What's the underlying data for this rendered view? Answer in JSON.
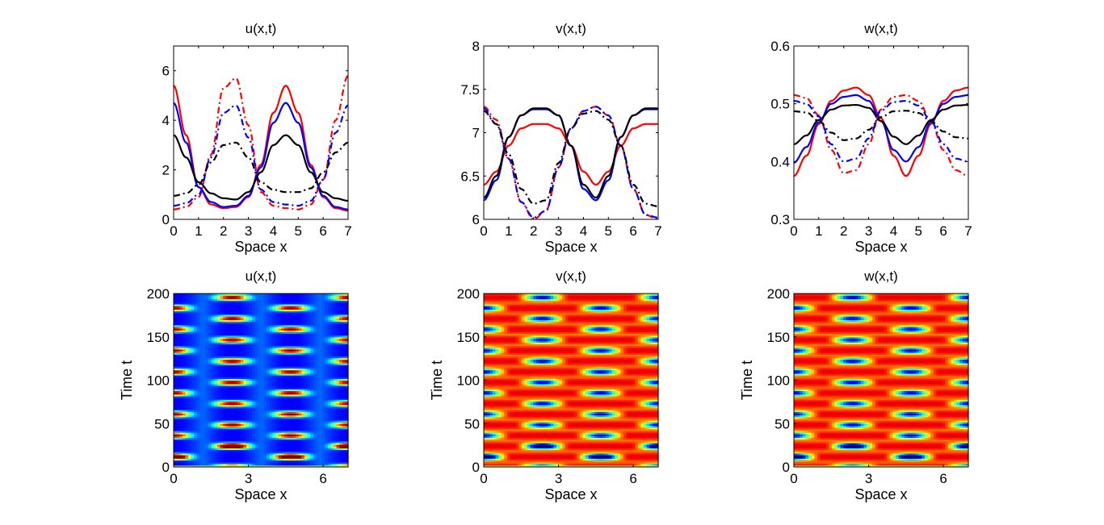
{
  "chart_data": [
    {
      "type": "line",
      "title": "u(x,t)",
      "xlabel": "Space x",
      "ylabel": "",
      "xlim": [
        0,
        7
      ],
      "ylim": [
        0,
        7
      ],
      "xticks": [
        "0",
        "1",
        "2",
        "3",
        "4",
        "5",
        "6",
        "7"
      ],
      "yticks": [
        "0",
        "2",
        "4",
        "6"
      ],
      "grid": false,
      "series": [
        {
          "color": "#ff0000",
          "dash": "solid",
          "x": [
            0,
            0.5,
            1,
            1.5,
            2,
            2.5,
            3,
            3.5,
            4,
            4.5,
            5,
            5.5,
            6,
            6.5,
            7
          ],
          "y": [
            5.4,
            3.4,
            1.3,
            0.6,
            0.45,
            0.5,
            0.9,
            2.2,
            4.3,
            5.4,
            4.3,
            2.2,
            0.9,
            0.45,
            0.35
          ]
        },
        {
          "color": "#0000ff",
          "dash": "solid",
          "x": [
            0,
            0.5,
            1,
            1.5,
            2,
            2.5,
            3,
            3.5,
            4,
            4.5,
            5,
            5.5,
            6,
            6.5,
            7
          ],
          "y": [
            4.7,
            3.1,
            1.3,
            0.7,
            0.5,
            0.55,
            0.95,
            2.1,
            3.9,
            4.7,
            3.9,
            2.1,
            0.95,
            0.5,
            0.4
          ]
        },
        {
          "color": "#000000",
          "dash": "solid",
          "x": [
            0,
            0.5,
            1,
            1.5,
            2,
            2.5,
            3,
            3.5,
            4,
            4.5,
            5,
            5.5,
            6,
            6.5,
            7
          ],
          "y": [
            3.4,
            2.5,
            1.5,
            1.05,
            0.85,
            0.8,
            1.1,
            1.9,
            3.0,
            3.4,
            3.0,
            1.9,
            1.1,
            0.85,
            0.75
          ]
        },
        {
          "color": "#ff0000",
          "dash": "dashdot",
          "x": [
            0,
            0.5,
            1,
            1.5,
            2,
            2.5,
            3,
            3.5,
            4,
            4.5,
            5,
            5.5,
            6,
            6.5,
            7
          ],
          "y": [
            0.4,
            0.5,
            0.9,
            2.6,
            5.3,
            5.7,
            3.8,
            1.1,
            0.55,
            0.45,
            0.4,
            0.6,
            1.6,
            4.0,
            5.8
          ]
        },
        {
          "color": "#0000ff",
          "dash": "dashdot",
          "x": [
            0,
            0.5,
            1,
            1.5,
            2,
            2.5,
            3,
            3.5,
            4,
            4.5,
            5,
            5.5,
            6,
            6.5,
            7
          ],
          "y": [
            0.55,
            0.65,
            1.0,
            2.5,
            4.3,
            4.6,
            3.3,
            1.2,
            0.7,
            0.6,
            0.55,
            0.75,
            1.6,
            3.5,
            4.6
          ]
        },
        {
          "color": "#000000",
          "dash": "dashdot",
          "x": [
            0,
            0.5,
            1,
            1.5,
            2,
            2.5,
            3,
            3.5,
            4,
            4.5,
            5,
            5.5,
            6,
            6.5,
            7
          ],
          "y": [
            0.95,
            1.05,
            1.4,
            2.3,
            3.0,
            3.1,
            2.5,
            1.5,
            1.2,
            1.1,
            1.1,
            1.25,
            1.9,
            2.7,
            3.1
          ]
        }
      ]
    },
    {
      "type": "line",
      "title": "v(x,t)",
      "xlabel": "Space x",
      "ylabel": "",
      "xlim": [
        0,
        7
      ],
      "ylim": [
        6,
        8
      ],
      "xticks": [
        "0",
        "1",
        "2",
        "3",
        "4",
        "5",
        "6",
        "7"
      ],
      "yticks": [
        "6",
        "6.5",
        "7",
        "7.5",
        "8"
      ],
      "grid": false,
      "series": [
        {
          "color": "#ff0000",
          "dash": "solid",
          "x": [
            0,
            0.5,
            1,
            1.5,
            2,
            2.5,
            3,
            3.5,
            4,
            4.5,
            5,
            5.5,
            6,
            6.5,
            7
          ],
          "y": [
            6.4,
            6.55,
            6.85,
            7.05,
            7.1,
            7.1,
            7.05,
            6.85,
            6.55,
            6.4,
            6.55,
            6.85,
            7.05,
            7.1,
            7.1
          ]
        },
        {
          "color": "#0000ff",
          "dash": "solid",
          "x": [
            0,
            0.5,
            1,
            1.5,
            2,
            2.5,
            3,
            3.5,
            4,
            4.5,
            5,
            5.5,
            6,
            6.5,
            7
          ],
          "y": [
            6.22,
            6.45,
            6.95,
            7.2,
            7.27,
            7.27,
            7.2,
            6.85,
            6.35,
            6.22,
            6.45,
            6.95,
            7.2,
            7.27,
            7.27
          ]
        },
        {
          "color": "#000000",
          "dash": "solid",
          "x": [
            0,
            0.5,
            1,
            1.5,
            2,
            2.5,
            3,
            3.5,
            4,
            4.5,
            5,
            5.5,
            6,
            6.5,
            7
          ],
          "y": [
            6.25,
            6.5,
            6.95,
            7.2,
            7.28,
            7.28,
            7.2,
            6.85,
            6.4,
            6.25,
            6.5,
            6.95,
            7.2,
            7.28,
            7.28
          ]
        },
        {
          "color": "#ff0000",
          "dash": "dashdot",
          "x": [
            0,
            0.5,
            1,
            1.5,
            2,
            2.5,
            3,
            3.5,
            4,
            4.5,
            5,
            5.5,
            6,
            6.5,
            7
          ],
          "y": [
            7.3,
            7.15,
            6.7,
            6.2,
            6.0,
            6.1,
            6.6,
            7.05,
            7.25,
            7.3,
            7.2,
            6.85,
            6.35,
            6.05,
            6.0
          ]
        },
        {
          "color": "#0000ff",
          "dash": "dashdot",
          "x": [
            0,
            0.5,
            1,
            1.5,
            2,
            2.5,
            3,
            3.5,
            4,
            4.5,
            5,
            5.5,
            6,
            6.5,
            7
          ],
          "y": [
            7.28,
            7.1,
            6.7,
            6.2,
            6.02,
            6.1,
            6.6,
            7.05,
            7.25,
            7.3,
            7.2,
            6.85,
            6.35,
            6.05,
            6.02
          ]
        },
        {
          "color": "#000000",
          "dash": "dashdot",
          "x": [
            0,
            0.5,
            1,
            1.5,
            2,
            2.5,
            3,
            3.5,
            4,
            4.5,
            5,
            5.5,
            6,
            6.5,
            7
          ],
          "y": [
            7.25,
            7.1,
            6.75,
            6.35,
            6.18,
            6.22,
            6.65,
            7.05,
            7.22,
            7.25,
            7.15,
            6.85,
            6.4,
            6.18,
            6.15
          ]
        }
      ]
    },
    {
      "type": "line",
      "title": "w(x,t)",
      "xlabel": "Space x",
      "ylabel": "",
      "xlim": [
        0,
        7
      ],
      "ylim": [
        0.3,
        0.6
      ],
      "xticks": [
        "0",
        "1",
        "2",
        "3",
        "4",
        "5",
        "6",
        "7"
      ],
      "yticks": [
        "0.3",
        "0.4",
        "0.5",
        "0.6"
      ],
      "grid": false,
      "series": [
        {
          "color": "#ff0000",
          "dash": "solid",
          "x": [
            0,
            0.5,
            1,
            1.5,
            2,
            2.5,
            3,
            3.5,
            4,
            4.5,
            5,
            5.5,
            6,
            6.5,
            7
          ],
          "y": [
            0.375,
            0.41,
            0.465,
            0.505,
            0.523,
            0.528,
            0.515,
            0.475,
            0.41,
            0.375,
            0.41,
            0.465,
            0.505,
            0.523,
            0.528
          ]
        },
        {
          "color": "#0000ff",
          "dash": "solid",
          "x": [
            0,
            0.5,
            1,
            1.5,
            2,
            2.5,
            3,
            3.5,
            4,
            4.5,
            5,
            5.5,
            6,
            6.5,
            7
          ],
          "y": [
            0.398,
            0.425,
            0.468,
            0.5,
            0.512,
            0.515,
            0.505,
            0.47,
            0.42,
            0.4,
            0.425,
            0.468,
            0.5,
            0.512,
            0.515
          ]
        },
        {
          "color": "#000000",
          "dash": "solid",
          "x": [
            0,
            0.5,
            1,
            1.5,
            2,
            2.5,
            3,
            3.5,
            4,
            4.5,
            5,
            5.5,
            6,
            6.5,
            7
          ],
          "y": [
            0.43,
            0.445,
            0.472,
            0.49,
            0.497,
            0.498,
            0.493,
            0.47,
            0.443,
            0.43,
            0.445,
            0.472,
            0.49,
            0.497,
            0.498
          ]
        },
        {
          "color": "#ff0000",
          "dash": "dashdot",
          "x": [
            0,
            0.5,
            1,
            1.5,
            2,
            2.5,
            3,
            3.5,
            4,
            4.5,
            5,
            5.5,
            6,
            6.5,
            7
          ],
          "y": [
            0.515,
            0.51,
            0.48,
            0.42,
            0.38,
            0.385,
            0.43,
            0.49,
            0.512,
            0.515,
            0.505,
            0.47,
            0.42,
            0.385,
            0.375
          ]
        },
        {
          "color": "#0000ff",
          "dash": "dashdot",
          "x": [
            0,
            0.5,
            1,
            1.5,
            2,
            2.5,
            3,
            3.5,
            4,
            4.5,
            5,
            5.5,
            6,
            6.5,
            7
          ],
          "y": [
            0.505,
            0.5,
            0.478,
            0.43,
            0.4,
            0.405,
            0.44,
            0.488,
            0.503,
            0.505,
            0.497,
            0.47,
            0.43,
            0.405,
            0.4
          ]
        },
        {
          "color": "#000000",
          "dash": "dashdot",
          "x": [
            0,
            0.5,
            1,
            1.5,
            2,
            2.5,
            3,
            3.5,
            4,
            4.5,
            5,
            5.5,
            6,
            6.5,
            7
          ],
          "y": [
            0.487,
            0.485,
            0.47,
            0.45,
            0.437,
            0.44,
            0.455,
            0.477,
            0.487,
            0.488,
            0.484,
            0.47,
            0.452,
            0.442,
            0.44
          ]
        }
      ]
    },
    {
      "type": "heatmap",
      "title": "u(x,t)",
      "xlabel": "Space x",
      "ylabel": "Time t",
      "xlim": [
        0,
        7
      ],
      "ylim": [
        0,
        200
      ],
      "xticks": [
        "0",
        "3",
        "6"
      ],
      "yticks": [
        "0",
        "50",
        "100",
        "150",
        "200"
      ],
      "colormap": "jet",
      "pattern": {
        "low_band": "blue",
        "hot_spots": "yellow-red",
        "initial_row": "green"
      }
    },
    {
      "type": "heatmap",
      "title": "v(x,t)",
      "xlabel": "Space x",
      "ylabel": "Time t",
      "xlim": [
        0,
        7
      ],
      "ylim": [
        0,
        200
      ],
      "xticks": [
        "0",
        "3",
        "6"
      ],
      "yticks": [
        "0",
        "50",
        "100",
        "150",
        "200"
      ],
      "colormap": "jet",
      "pattern": {
        "high_band": "red",
        "low_spots": "cyan-blue",
        "initial_row": "green"
      }
    },
    {
      "type": "heatmap",
      "title": "w(x,t)",
      "xlabel": "Space x",
      "ylabel": "Time t",
      "xlim": [
        0,
        7
      ],
      "ylim": [
        0,
        200
      ],
      "xticks": [
        "0",
        "3",
        "6"
      ],
      "yticks": [
        "0",
        "50",
        "100",
        "150",
        "200"
      ],
      "colormap": "jet",
      "pattern": {
        "high_band": "red",
        "low_spots": "cyan-blue",
        "initial_row": "green"
      }
    }
  ]
}
